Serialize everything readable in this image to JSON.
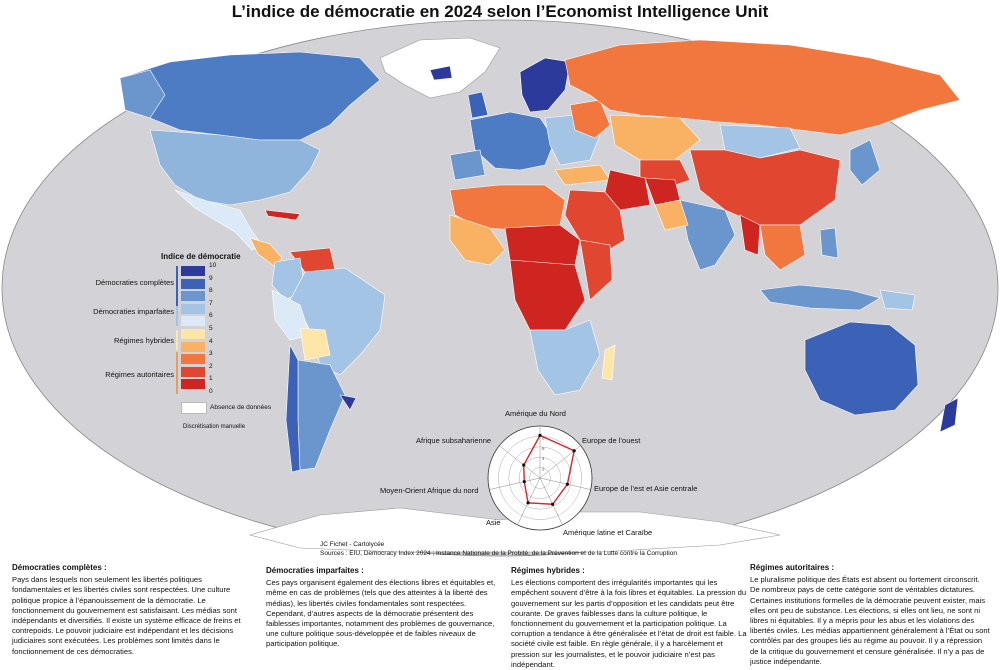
{
  "title": "L’indice de démocratie en 2024 selon l’Economist Intelligence Unit",
  "legend": {
    "title": "Indice de démocratie",
    "ticks": [
      "10",
      "9",
      "8",
      "7",
      "6",
      "5",
      "4",
      "3",
      "2",
      "1",
      "0"
    ],
    "categories": [
      "Démocraties complètes",
      "Démocraties imparfaites",
      "Régimes hybrides",
      "Régimes autoritaires"
    ],
    "colors": [
      "#2b3a9b",
      "#3c62b8",
      "#6a96cd",
      "#a3c4e4",
      "#dbeaf6",
      "#fde6a8",
      "#f9b163",
      "#f2773f",
      "#e04630",
      "#cf2521"
    ],
    "no_data": "Absence de données",
    "method": "Discrétisation manuelle"
  },
  "radar": {
    "labels": [
      "Amérique du Nord",
      "Europe de l’ouest",
      "Europe de l’est et Asie centrale",
      "Amérique latine et Caraïbe",
      "Asie",
      "Moyen-Orient Afrique du nord",
      "Afrique subsaharienne"
    ],
    "values": [
      8.2,
      8.4,
      5.4,
      5.6,
      5.3,
      3.1,
      4.0
    ],
    "scale": [
      "2",
      "4",
      "6",
      "8"
    ]
  },
  "credit": {
    "author": "JC Fichet - Cartolycée",
    "sources": "Sources : EIU, Democracy Index 2024 ; Instance Nationale de la Probité, de la Prévention et de la Lutte contre la Corruption"
  },
  "texts": [
    {
      "heading": "Démocraties complètes :",
      "body": "Pays dans lesquels non seulement les libertés politiques fondamentales et les libertés civiles sont respectées. Une culture politique propice à l’épanouissement de la démocratie. Le fonctionnement du gouvernement est satisfaisant. Les médias sont indépendants et diversifiés. Il existe un système efficace de freins et contrepoids. Le pouvoir judiciaire est indépendant et les décisions judiciaires sont exécutées. Les problèmes sont limités dans le fonctionnement de ces démocraties."
    },
    {
      "heading": "Démocraties imparfaites :",
      "body": "Ces pays organisent également des élections libres et équitables et, même en cas de problèmes (tels que des atteintes à la liberté des médias), les libertés civiles fondamentales sont respectées. Cependant, d’autres aspects de la démocratie présentent des faiblesses importantes, notamment des problèmes de gouvernance, une culture politique sous-développée et de faibles niveaux de participation politique."
    },
    {
      "heading": "Régimes hybrides :",
      "body": "Les élections comportent des irrégularités importantes qui les empêchent souvent d’être à la fois libres et équitables. La pression du gouvernement sur les partis d’opposition et les candidats peut être courante. De graves faiblesses dans la culture politique, le fonctionnement du gouvernement et la participation politique. La corruption a tendance à être généralisée et l’état de droit est faible. La société civile est faible. En règle générale, il y a harcèlement et pression sur les journalistes, et le pouvoir judiciaire n’est pas indépendant."
    },
    {
      "heading": "Régimes autoritaires :",
      "body": "Le pluralisme politique des États est absent ou fortement circonscrit. De nombreux pays de cette catégorie sont de véritables dictatures. Certaines institutions formelles de la démocratie peuvent exister, mais elles ont peu de substance. Les élections, si elles ont lieu, ne sont ni libres ni équitables. Il y a mépris pour les abus et les violations des libertés civiles. Les médias appartiennent généralement à l’État ou sont contrôlés par des groupes liés au régime au pouvoir. Il y a répression de la critique du gouvernement et censure généralisée. Il n’y a pas de justice indépendante."
    }
  ]
}
